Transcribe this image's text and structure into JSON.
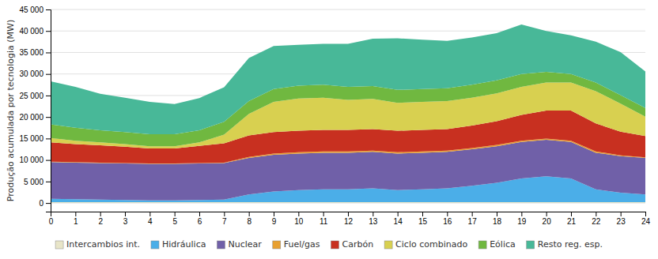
{
  "chart_data": {
    "type": "area",
    "stacked": true,
    "ylabel": "Produção acumulada por tecnologia (MW)",
    "x": [
      0,
      1,
      2,
      3,
      4,
      5,
      6,
      7,
      8,
      9,
      10,
      11,
      12,
      13,
      14,
      15,
      16,
      17,
      18,
      19,
      20,
      21,
      22,
      23,
      24
    ],
    "xlim": [
      0,
      24
    ],
    "xticks": [
      0,
      1,
      2,
      3,
      4,
      5,
      6,
      7,
      8,
      9,
      10,
      11,
      12,
      13,
      14,
      15,
      16,
      17,
      18,
      19,
      20,
      21,
      22,
      23,
      24
    ],
    "ylim": [
      -2000,
      45000
    ],
    "yticks": [
      0,
      {
        "value": 5000,
        "label": "5 000"
      },
      {
        "value": 10000,
        "label": "10 000"
      },
      {
        "value": 15000,
        "label": "15 000"
      },
      {
        "value": 20000,
        "label": "20 000"
      },
      {
        "value": 25000,
        "label": "25 000"
      },
      {
        "value": 30000,
        "label": "30 000"
      },
      {
        "value": 35000,
        "label": "35 000"
      },
      {
        "value": 40000,
        "label": "40 000"
      },
      {
        "value": 45000,
        "label": "45 000"
      }
    ],
    "grid": true,
    "legend": "bottom",
    "series": [
      {
        "name": "Intercambios int.",
        "color": "#e8e5c8",
        "values": [
          200,
          200,
          200,
          200,
          200,
          200,
          200,
          200,
          200,
          200,
          200,
          200,
          200,
          200,
          200,
          200,
          200,
          200,
          200,
          200,
          200,
          200,
          200,
          200,
          200
        ]
      },
      {
        "name": "Hidráulica",
        "color": "#4baee8",
        "values": [
          800,
          700,
          600,
          500,
          400,
          400,
          500,
          600,
          1800,
          2500,
          2800,
          3000,
          3000,
          3200,
          2800,
          3000,
          3200,
          3800,
          4500,
          5500,
          6000,
          5500,
          3000,
          2200,
          1800
        ]
      },
      {
        "name": "Nuclear",
        "color": "#7060a8",
        "values": [
          8500,
          8500,
          8500,
          8500,
          8500,
          8500,
          8500,
          8500,
          8500,
          8500,
          8500,
          8500,
          8500,
          8500,
          8500,
          8500,
          8500,
          8500,
          8500,
          8500,
          8500,
          8500,
          8500,
          8500,
          8500
        ]
      },
      {
        "name": "Fuel/gas",
        "color": "#e8a030",
        "values": [
          100,
          100,
          100,
          100,
          100,
          100,
          100,
          100,
          200,
          300,
          300,
          300,
          300,
          300,
          300,
          300,
          300,
          300,
          300,
          300,
          300,
          300,
          300,
          200,
          100
        ]
      },
      {
        "name": "Carbón",
        "color": "#c83020",
        "values": [
          4500,
          4200,
          4000,
          3800,
          3500,
          3500,
          4000,
          4500,
          5000,
          5000,
          5000,
          5000,
          5000,
          5000,
          5000,
          5000,
          5000,
          5200,
          5500,
          6000,
          6500,
          7000,
          6500,
          5500,
          5000
        ]
      },
      {
        "name": "Ciclo combinado",
        "color": "#d8d050",
        "values": [
          1000,
          800,
          700,
          600,
          500,
          500,
          800,
          2000,
          5000,
          7000,
          7500,
          7500,
          7000,
          7000,
          6500,
          6500,
          6500,
          6500,
          6500,
          6500,
          6500,
          6500,
          7500,
          6500,
          4500
        ]
      },
      {
        "name": "Eólica",
        "color": "#70b840",
        "values": [
          3200,
          3000,
          2800,
          2800,
          2800,
          2800,
          2800,
          3000,
          3000,
          3000,
          3000,
          3000,
          3000,
          3000,
          3000,
          3000,
          3000,
          3000,
          3000,
          3000,
          2500,
          2000,
          2000,
          2000,
          2000
        ]
      },
      {
        "name": "Resto reg. esp.",
        "color": "#48b898",
        "values": [
          10000,
          9500,
          8500,
          8000,
          7500,
          7000,
          7500,
          8000,
          10000,
          10000,
          9500,
          9500,
          10000,
          11000,
          12000,
          11500,
          11000,
          11000,
          11000,
          11500,
          9500,
          9000,
          9500,
          10000,
          8500
        ]
      }
    ]
  }
}
